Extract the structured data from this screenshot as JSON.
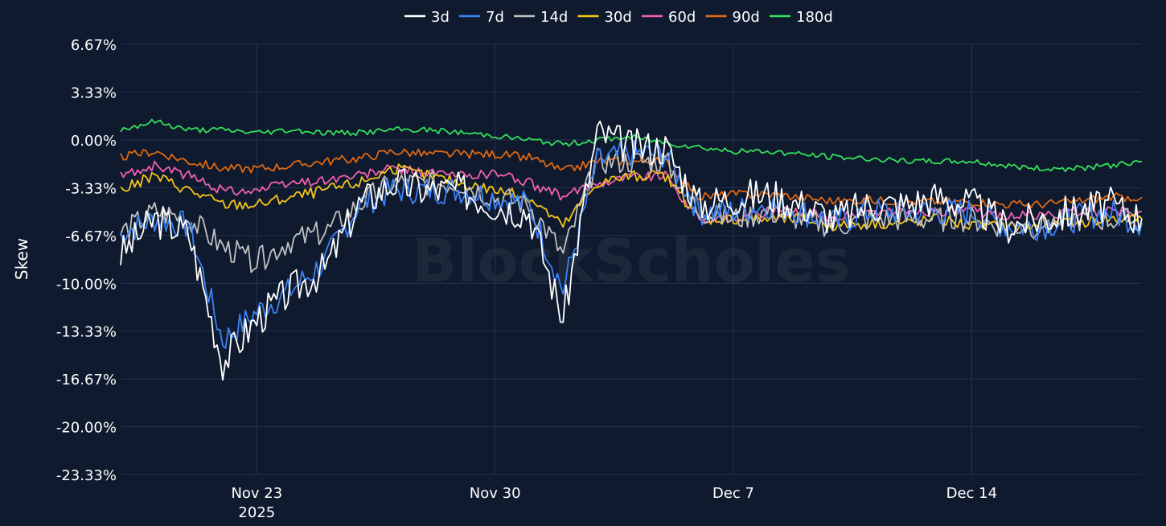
{
  "chart_data": {
    "type": "line",
    "ylabel": "Skew",
    "watermark": "BlockScholes",
    "x_axis": {
      "start": "2025-11-19",
      "end": "2025-12-19",
      "ticks": [
        {
          "date": "2025-11-23",
          "label": "Nov 23",
          "sublabel": "2025"
        },
        {
          "date": "2025-11-30",
          "label": "Nov 30",
          "sublabel": ""
        },
        {
          "date": "2025-12-07",
          "label": "Dec 7",
          "sublabel": ""
        },
        {
          "date": "2025-12-14",
          "label": "Dec 14",
          "sublabel": ""
        }
      ]
    },
    "y_axis": {
      "range": [
        -23.33,
        6.67
      ],
      "ticks": [
        6.67,
        3.33,
        0.0,
        -3.33,
        -6.67,
        -10.0,
        -13.33,
        -16.67,
        -20.0,
        -23.33
      ],
      "tick_labels": [
        "6.67%",
        "3.33%",
        "0.00%",
        "-3.33%",
        "-6.67%",
        "-10.00%",
        "-13.33%",
        "-16.67%",
        "-20.00%",
        "-23.33%"
      ]
    },
    "grid": true,
    "legend_position": "top-center",
    "series": [
      {
        "name": "3d",
        "color": "#ffffff",
        "seed": 3,
        "noise": 1.3,
        "x": [
          "2025-11-19",
          "2025-11-20",
          "2025-11-21",
          "2025-11-22",
          "2025-11-23",
          "2025-11-24",
          "2025-11-25",
          "2025-11-26",
          "2025-11-27",
          "2025-11-28",
          "2025-11-29",
          "2025-11-30",
          "2025-12-01",
          "2025-12-02",
          "2025-12-03",
          "2025-12-04",
          "2025-12-05",
          "2025-12-06",
          "2025-12-07",
          "2025-12-08",
          "2025-12-09",
          "2025-12-10",
          "2025-12-11",
          "2025-12-12",
          "2025-12-13",
          "2025-12-14",
          "2025-12-15",
          "2025-12-16",
          "2025-12-17",
          "2025-12-18",
          "2025-12-19"
        ],
        "values": [
          -8.0,
          -5.5,
          -6.5,
          -15.5,
          -12.5,
          -10.5,
          -9.0,
          -4.5,
          -3.0,
          -3.5,
          -3.5,
          -4.5,
          -5.0,
          -12.5,
          0.5,
          -0.5,
          -0.5,
          -4.5,
          -4.0,
          -3.8,
          -4.5,
          -5.5,
          -4.5,
          -4.5,
          -4.0,
          -4.5,
          -6.0,
          -5.5,
          -5.0,
          -4.5,
          -5.5
        ]
      },
      {
        "name": "7d",
        "color": "#3b82f6",
        "seed": 7,
        "noise": 1.0,
        "x": [
          "2025-11-19",
          "2025-11-20",
          "2025-11-21",
          "2025-11-22",
          "2025-11-23",
          "2025-11-24",
          "2025-11-25",
          "2025-11-26",
          "2025-11-27",
          "2025-11-28",
          "2025-11-29",
          "2025-11-30",
          "2025-12-01",
          "2025-12-02",
          "2025-12-03",
          "2025-12-04",
          "2025-12-05",
          "2025-12-06",
          "2025-12-07",
          "2025-12-08",
          "2025-12-09",
          "2025-12-10",
          "2025-12-11",
          "2025-12-12",
          "2025-12-13",
          "2025-12-14",
          "2025-12-15",
          "2025-12-16",
          "2025-12-17",
          "2025-12-18",
          "2025-12-19"
        ],
        "values": [
          -6.5,
          -5.5,
          -6.0,
          -14.0,
          -12.0,
          -10.5,
          -8.5,
          -4.5,
          -3.5,
          -3.5,
          -3.5,
          -4.0,
          -4.5,
          -10.5,
          -1.5,
          -1.0,
          -1.0,
          -5.0,
          -5.0,
          -4.5,
          -5.0,
          -5.8,
          -5.0,
          -5.0,
          -5.0,
          -5.0,
          -6.0,
          -6.0,
          -5.5,
          -5.0,
          -5.8
        ]
      },
      {
        "name": "14d",
        "color": "#c0c0c0",
        "seed": 14,
        "noise": 0.9,
        "x": [
          "2025-11-19",
          "2025-11-20",
          "2025-11-21",
          "2025-11-22",
          "2025-11-23",
          "2025-11-24",
          "2025-11-25",
          "2025-11-26",
          "2025-11-27",
          "2025-11-28",
          "2025-11-29",
          "2025-11-30",
          "2025-12-01",
          "2025-12-02",
          "2025-12-03",
          "2025-12-04",
          "2025-12-05",
          "2025-12-06",
          "2025-12-07",
          "2025-12-08",
          "2025-12-09",
          "2025-12-10",
          "2025-12-11",
          "2025-12-12",
          "2025-12-13",
          "2025-12-14",
          "2025-12-15",
          "2025-12-16",
          "2025-12-17",
          "2025-12-18",
          "2025-12-19"
        ],
        "values": [
          -6.5,
          -5.0,
          -5.5,
          -7.5,
          -8.5,
          -7.0,
          -6.5,
          -4.5,
          -3.0,
          -3.0,
          -3.0,
          -4.0,
          -4.5,
          -8.0,
          -1.5,
          -1.5,
          -1.5,
          -5.0,
          -5.5,
          -5.0,
          -5.5,
          -6.0,
          -5.5,
          -5.5,
          -5.5,
          -5.5,
          -6.0,
          -6.0,
          -5.5,
          -5.5,
          -5.8
        ]
      },
      {
        "name": "30d",
        "color": "#f5c518",
        "seed": 30,
        "noise": 0.4,
        "x": [
          "2025-11-19",
          "2025-11-20",
          "2025-11-21",
          "2025-11-22",
          "2025-11-23",
          "2025-11-24",
          "2025-11-25",
          "2025-11-26",
          "2025-11-27",
          "2025-11-28",
          "2025-11-29",
          "2025-11-30",
          "2025-12-01",
          "2025-12-02",
          "2025-12-03",
          "2025-12-04",
          "2025-12-05",
          "2025-12-06",
          "2025-12-07",
          "2025-12-08",
          "2025-12-09",
          "2025-12-10",
          "2025-12-11",
          "2025-12-12",
          "2025-12-13",
          "2025-12-14",
          "2025-12-15",
          "2025-12-16",
          "2025-12-17",
          "2025-12-18",
          "2025-12-19"
        ],
        "values": [
          -3.5,
          -2.5,
          -3.5,
          -4.5,
          -4.5,
          -4.0,
          -3.5,
          -3.0,
          -2.0,
          -2.5,
          -3.0,
          -3.5,
          -4.0,
          -6.0,
          -3.0,
          -2.5,
          -2.5,
          -5.5,
          -5.5,
          -5.5,
          -5.5,
          -6.0,
          -5.8,
          -5.8,
          -5.5,
          -6.0,
          -6.0,
          -6.0,
          -5.8,
          -5.5,
          -5.5
        ]
      },
      {
        "name": "60d",
        "color": "#f060b0",
        "seed": 60,
        "noise": 0.35,
        "x": [
          "2025-11-19",
          "2025-11-20",
          "2025-11-21",
          "2025-11-22",
          "2025-11-23",
          "2025-11-24",
          "2025-11-25",
          "2025-11-26",
          "2025-11-27",
          "2025-11-28",
          "2025-11-29",
          "2025-11-30",
          "2025-12-01",
          "2025-12-02",
          "2025-12-03",
          "2025-12-04",
          "2025-12-05",
          "2025-12-06",
          "2025-12-07",
          "2025-12-08",
          "2025-12-09",
          "2025-12-10",
          "2025-12-11",
          "2025-12-12",
          "2025-12-13",
          "2025-12-14",
          "2025-12-15",
          "2025-12-16",
          "2025-12-17",
          "2025-12-18",
          "2025-12-19"
        ],
        "values": [
          -2.5,
          -1.8,
          -2.5,
          -3.5,
          -3.5,
          -3.0,
          -2.8,
          -2.5,
          -2.0,
          -2.3,
          -2.5,
          -2.3,
          -3.0,
          -4.0,
          -3.0,
          -2.5,
          -2.5,
          -5.5,
          -5.5,
          -5.0,
          -5.0,
          -5.5,
          -5.0,
          -5.0,
          -5.0,
          -5.0,
          -5.3,
          -5.3,
          -5.0,
          -5.0,
          -5.0
        ]
      },
      {
        "name": "90d",
        "color": "#e06810",
        "seed": 90,
        "noise": 0.3,
        "x": [
          "2025-11-19",
          "2025-11-20",
          "2025-11-21",
          "2025-11-22",
          "2025-11-23",
          "2025-11-24",
          "2025-11-25",
          "2025-11-26",
          "2025-11-27",
          "2025-11-28",
          "2025-11-29",
          "2025-11-30",
          "2025-12-01",
          "2025-12-02",
          "2025-12-03",
          "2025-12-04",
          "2025-12-05",
          "2025-12-06",
          "2025-12-07",
          "2025-12-08",
          "2025-12-09",
          "2025-12-10",
          "2025-12-11",
          "2025-12-12",
          "2025-12-13",
          "2025-12-14",
          "2025-12-15",
          "2025-12-16",
          "2025-12-17",
          "2025-12-18",
          "2025-12-19"
        ],
        "values": [
          -1.2,
          -0.8,
          -1.5,
          -2.0,
          -2.0,
          -1.8,
          -1.5,
          -1.3,
          -0.8,
          -1.0,
          -1.0,
          -1.0,
          -1.2,
          -2.2,
          -1.5,
          -1.5,
          -1.5,
          -4.0,
          -3.8,
          -3.8,
          -4.0,
          -4.3,
          -4.2,
          -4.3,
          -4.3,
          -4.3,
          -4.5,
          -4.5,
          -4.3,
          -4.0,
          -4.0
        ]
      },
      {
        "name": "180d",
        "color": "#33e05a",
        "seed": 180,
        "noise": 0.2,
        "x": [
          "2025-11-19",
          "2025-11-20",
          "2025-11-21",
          "2025-11-22",
          "2025-11-23",
          "2025-11-24",
          "2025-11-25",
          "2025-11-26",
          "2025-11-27",
          "2025-11-28",
          "2025-11-29",
          "2025-11-30",
          "2025-12-01",
          "2025-12-02",
          "2025-12-03",
          "2025-12-04",
          "2025-12-05",
          "2025-12-06",
          "2025-12-07",
          "2025-12-08",
          "2025-12-09",
          "2025-12-10",
          "2025-12-11",
          "2025-12-12",
          "2025-12-13",
          "2025-12-14",
          "2025-12-15",
          "2025-12-16",
          "2025-12-17",
          "2025-12-18",
          "2025-12-19"
        ],
        "values": [
          0.7,
          1.3,
          0.7,
          0.7,
          0.5,
          0.7,
          0.5,
          0.5,
          0.7,
          0.7,
          0.5,
          0.3,
          0.0,
          -0.3,
          0.0,
          0.2,
          -0.2,
          -0.5,
          -0.8,
          -0.8,
          -1.0,
          -1.2,
          -1.3,
          -1.5,
          -1.5,
          -1.5,
          -1.8,
          -2.0,
          -2.0,
          -1.8,
          -1.5
        ]
      }
    ]
  }
}
